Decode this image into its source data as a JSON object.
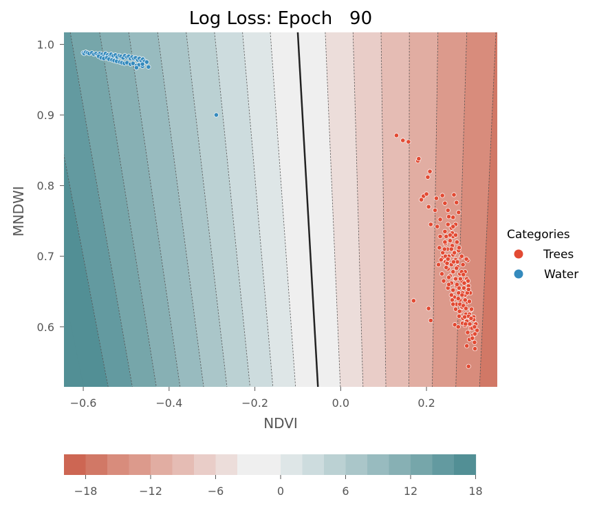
{
  "chart_data": {
    "type": "scatter",
    "title": "Log Loss: Epoch   90",
    "xlabel": "NDVI",
    "ylabel": "MNDWI",
    "xlim": [
      -0.645,
      0.365
    ],
    "ylim": [
      0.515,
      1.017
    ],
    "xticks": [
      -0.6,
      -0.4,
      -0.2,
      0.0,
      0.2
    ],
    "xtick_labels": [
      "−0.6",
      "−0.4",
      "−0.2",
      "0.0",
      "0.2"
    ],
    "yticks": [
      0.6,
      0.7,
      0.8,
      0.9,
      1.0
    ],
    "ytick_labels": [
      "0.6",
      "0.7",
      "0.8",
      "0.9",
      "1.0"
    ],
    "grid": false,
    "legend": {
      "title": "Categories",
      "placement": "right",
      "entries": [
        {
          "name": "Trees",
          "color": "#e24a33"
        },
        {
          "name": "Water",
          "color": "#348abd"
        }
      ]
    },
    "decision_boundary": {
      "points": [
        [
          -0.1,
          1.017
        ],
        [
          -0.053,
          0.515
        ]
      ],
      "color": "#222222"
    },
    "contour_levels": [
      -18,
      -16,
      -14,
      -12,
      -10,
      -8,
      -6,
      -4,
      -2,
      0,
      2,
      4,
      6,
      8,
      10,
      12,
      14,
      16,
      18
    ],
    "colorbar": {
      "min": -20,
      "max": 20,
      "ticks": [
        -18,
        -12,
        -6,
        0,
        6,
        12,
        18
      ],
      "tick_labels": [
        "−18",
        "−12",
        "−6",
        "0",
        "6",
        "12",
        "18"
      ],
      "colors": [
        "#cd6653",
        "#d17866",
        "#d88c7c",
        "#dc9a8c",
        "#e1ada2",
        "#e5bcb4",
        "#e9cdc8",
        "#ecddda",
        "#efefef",
        "#efefef",
        "#dee6e7",
        "#cddcde",
        "#bbd1d3",
        "#aac6c9",
        "#98bbbf",
        "#87b0b4",
        "#76a6aa",
        "#639aa0",
        "#528f95"
      ]
    },
    "series": [
      {
        "name": "Trees",
        "color": "#e24a33",
        "points": [
          [
            0.13,
            0.871
          ],
          [
            0.145,
            0.864
          ],
          [
            0.158,
            0.862
          ],
          [
            0.18,
            0.835
          ],
          [
            0.182,
            0.838
          ],
          [
            0.203,
            0.812
          ],
          [
            0.208,
            0.82
          ],
          [
            0.193,
            0.785
          ],
          [
            0.2,
            0.788
          ],
          [
            0.223,
            0.782
          ],
          [
            0.237,
            0.786
          ],
          [
            0.243,
            0.775
          ],
          [
            0.264,
            0.787
          ],
          [
            0.27,
            0.776
          ],
          [
            0.188,
            0.78
          ],
          [
            0.205,
            0.77
          ],
          [
            0.22,
            0.765
          ],
          [
            0.25,
            0.765
          ],
          [
            0.232,
            0.752
          ],
          [
            0.262,
            0.755
          ],
          [
            0.275,
            0.762
          ],
          [
            0.21,
            0.745
          ],
          [
            0.225,
            0.742
          ],
          [
            0.243,
            0.735
          ],
          [
            0.258,
            0.74
          ],
          [
            0.268,
            0.745
          ],
          [
            0.232,
            0.728
          ],
          [
            0.255,
            0.722
          ],
          [
            0.262,
            0.728
          ],
          [
            0.244,
            0.718
          ],
          [
            0.238,
            0.705
          ],
          [
            0.249,
            0.71
          ],
          [
            0.26,
            0.715
          ],
          [
            0.271,
            0.72
          ],
          [
            0.252,
            0.7
          ],
          [
            0.262,
            0.702
          ],
          [
            0.275,
            0.708
          ],
          [
            0.244,
            0.692
          ],
          [
            0.258,
            0.688
          ],
          [
            0.268,
            0.695
          ],
          [
            0.28,
            0.698
          ],
          [
            0.25,
            0.682
          ],
          [
            0.262,
            0.678
          ],
          [
            0.273,
            0.685
          ],
          [
            0.285,
            0.688
          ],
          [
            0.255,
            0.672
          ],
          [
            0.266,
            0.668
          ],
          [
            0.278,
            0.675
          ],
          [
            0.29,
            0.678
          ],
          [
            0.258,
            0.662
          ],
          [
            0.27,
            0.658
          ],
          [
            0.282,
            0.665
          ],
          [
            0.294,
            0.668
          ],
          [
            0.262,
            0.652
          ],
          [
            0.275,
            0.648
          ],
          [
            0.287,
            0.655
          ],
          [
            0.298,
            0.658
          ],
          [
            0.265,
            0.642
          ],
          [
            0.278,
            0.638
          ],
          [
            0.29,
            0.645
          ],
          [
            0.302,
            0.648
          ],
          [
            0.27,
            0.632
          ],
          [
            0.283,
            0.628
          ],
          [
            0.295,
            0.635
          ],
          [
            0.28,
            0.622
          ],
          [
            0.292,
            0.618
          ],
          [
            0.304,
            0.624
          ],
          [
            0.285,
            0.612
          ],
          [
            0.297,
            0.608
          ],
          [
            0.31,
            0.614
          ],
          [
            0.29,
            0.602
          ],
          [
            0.303,
            0.598
          ],
          [
            0.315,
            0.604
          ],
          [
            0.296,
            0.592
          ],
          [
            0.308,
            0.588
          ],
          [
            0.318,
            0.595
          ],
          [
            0.3,
            0.582
          ],
          [
            0.312,
            0.578
          ],
          [
            0.294,
            0.573
          ],
          [
            0.243,
            0.72
          ],
          [
            0.23,
            0.712
          ],
          [
            0.238,
            0.698
          ],
          [
            0.246,
            0.684
          ],
          [
            0.252,
            0.67
          ],
          [
            0.25,
            0.655
          ],
          [
            0.258,
            0.645
          ],
          [
            0.24,
            0.665
          ],
          [
            0.236,
            0.675
          ],
          [
            0.248,
            0.69
          ],
          [
            0.265,
            0.705
          ],
          [
            0.272,
            0.692
          ],
          [
            0.282,
            0.678
          ],
          [
            0.288,
            0.662
          ],
          [
            0.295,
            0.648
          ],
          [
            0.3,
            0.636
          ],
          [
            0.305,
            0.625
          ],
          [
            0.31,
            0.61
          ],
          [
            0.274,
            0.64
          ],
          [
            0.268,
            0.625
          ],
          [
            0.276,
            0.615
          ],
          [
            0.284,
            0.605
          ],
          [
            0.26,
            0.638
          ],
          [
            0.278,
            0.632
          ],
          [
            0.3,
            0.618
          ],
          [
            0.294,
            0.608
          ],
          [
            0.306,
            0.598
          ],
          [
            0.286,
            0.63
          ],
          [
            0.296,
            0.694
          ],
          [
            0.297,
            0.665
          ],
          [
            0.26,
            0.733
          ],
          [
            0.25,
            0.745
          ],
          [
            0.252,
            0.756
          ],
          [
            0.246,
            0.728
          ],
          [
            0.242,
            0.71
          ],
          [
            0.234,
            0.695
          ],
          [
            0.228,
            0.688
          ],
          [
            0.252,
            0.66
          ],
          [
            0.268,
            0.668
          ],
          [
            0.276,
            0.655
          ],
          [
            0.284,
            0.648
          ],
          [
            0.29,
            0.638
          ],
          [
            0.292,
            0.626
          ],
          [
            0.298,
            0.615
          ],
          [
            0.304,
            0.612
          ],
          [
            0.312,
            0.6
          ],
          [
            0.313,
            0.59
          ],
          [
            0.17,
            0.637
          ],
          [
            0.21,
            0.609
          ],
          [
            0.205,
            0.626
          ],
          [
            0.298,
            0.544
          ],
          [
            0.313,
            0.569
          ],
          [
            0.266,
            0.603
          ],
          [
            0.274,
            0.6
          ],
          [
            0.293,
            0.696
          ],
          [
            0.298,
            0.653
          ],
          [
            0.282,
            0.7
          ],
          [
            0.276,
            0.712
          ],
          [
            0.268,
            0.73
          ],
          [
            0.255,
            0.73
          ],
          [
            0.262,
            0.742
          ],
          [
            0.258,
            0.71
          ],
          [
            0.244,
            0.7
          ],
          [
            0.25,
            0.696
          ],
          [
            0.27,
            0.683
          ],
          [
            0.263,
            0.692
          ],
          [
            0.279,
            0.668
          ],
          [
            0.286,
            0.674
          ],
          [
            0.271,
            0.66
          ],
          [
            0.283,
            0.645
          ],
          [
            0.277,
            0.622
          ],
          [
            0.289,
            0.614
          ],
          [
            0.262,
            0.632
          ],
          [
            0.291,
            0.604
          ],
          [
            0.301,
            0.604
          ],
          [
            0.307,
            0.584
          ]
        ]
      },
      {
        "name": "Water",
        "color": "#348abd",
        "points": [
          [
            -0.6,
            0.988
          ],
          [
            -0.598,
            0.987
          ],
          [
            -0.594,
            0.989
          ],
          [
            -0.59,
            0.988
          ],
          [
            -0.586,
            0.987
          ],
          [
            -0.58,
            0.988
          ],
          [
            -0.575,
            0.986
          ],
          [
            -0.57,
            0.987
          ],
          [
            -0.566,
            0.985
          ],
          [
            -0.561,
            0.987
          ],
          [
            -0.556,
            0.986
          ],
          [
            -0.552,
            0.984
          ],
          [
            -0.548,
            0.987
          ],
          [
            -0.543,
            0.985
          ],
          [
            -0.539,
            0.983
          ],
          [
            -0.535,
            0.986
          ],
          [
            -0.53,
            0.984
          ],
          [
            -0.525,
            0.985
          ],
          [
            -0.521,
            0.982
          ],
          [
            -0.516,
            0.984
          ],
          [
            -0.512,
            0.983
          ],
          [
            -0.507,
            0.981
          ],
          [
            -0.503,
            0.984
          ],
          [
            -0.498,
            0.982
          ],
          [
            -0.494,
            0.983
          ],
          [
            -0.49,
            0.98
          ],
          [
            -0.486,
            0.982
          ],
          [
            -0.482,
            0.98
          ],
          [
            -0.478,
            0.981
          ],
          [
            -0.473,
            0.978
          ],
          [
            -0.469,
            0.98
          ],
          [
            -0.465,
            0.977
          ],
          [
            -0.461,
            0.979
          ],
          [
            -0.457,
            0.976
          ],
          [
            -0.452,
            0.975
          ],
          [
            -0.564,
            0.983
          ],
          [
            -0.558,
            0.981
          ],
          [
            -0.552,
            0.98
          ],
          [
            -0.545,
            0.981
          ],
          [
            -0.54,
            0.979
          ],
          [
            -0.533,
            0.978
          ],
          [
            -0.528,
            0.977
          ],
          [
            -0.522,
            0.976
          ],
          [
            -0.515,
            0.975
          ],
          [
            -0.51,
            0.974
          ],
          [
            -0.504,
            0.973
          ],
          [
            -0.498,
            0.974
          ],
          [
            -0.49,
            0.972
          ],
          [
            -0.484,
            0.973
          ],
          [
            -0.476,
            0.97
          ],
          [
            -0.47,
            0.971
          ],
          [
            -0.462,
            0.969
          ],
          [
            -0.448,
            0.968
          ],
          [
            -0.476,
            0.967
          ],
          [
            -0.462,
            0.972
          ],
          [
            -0.29,
            0.9
          ]
        ]
      }
    ]
  }
}
